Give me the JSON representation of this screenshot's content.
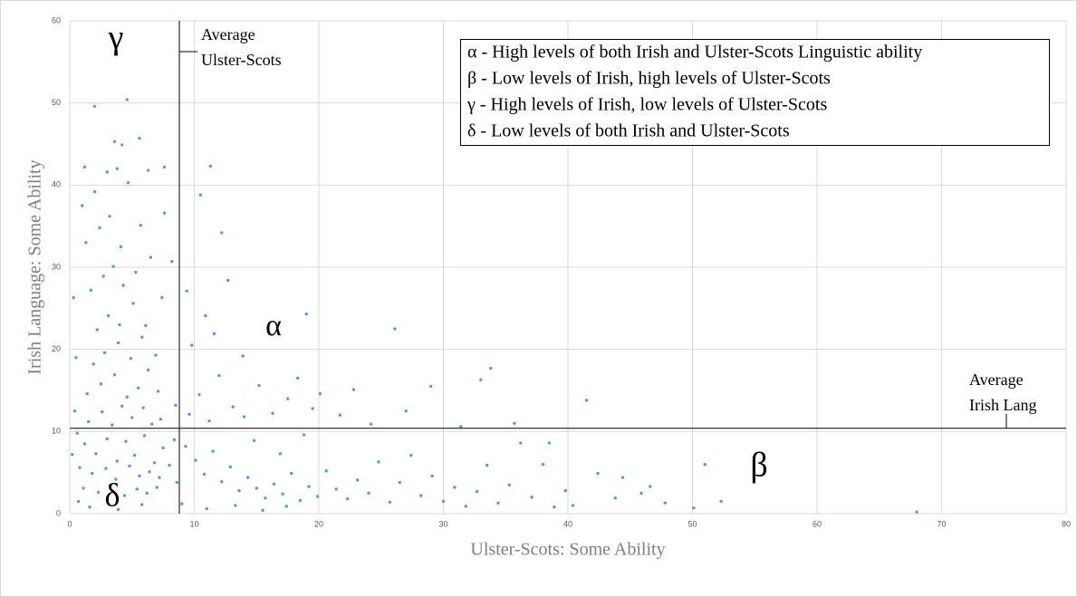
{
  "chart_data": {
    "type": "scatter",
    "x_label": "Ulster-Scots: Some Ability",
    "y_label": "Irish Language: Some Ability",
    "color": "#5b9bd5",
    "grid": true,
    "xlim": [
      0,
      80
    ],
    "xticks": [
      0,
      10,
      20,
      30,
      40,
      50,
      60,
      70,
      80
    ],
    "ylim": [
      0,
      60
    ],
    "yticks": [
      0,
      10,
      20,
      30,
      40,
      50,
      60
    ],
    "vlines": [
      {
        "value": 8.8,
        "label": [
          "Average",
          "Ulster-Scots"
        ]
      }
    ],
    "hlines": [
      {
        "value": 10.4,
        "label": [
          "Average",
          "Irish Lang"
        ]
      }
    ],
    "quadrant_labels": [
      "γ",
      "α",
      "β",
      "δ"
    ],
    "legend_text": [
      "α - High levels of both Irish and Ulster-Scots Linguistic ability",
      "β - Low levels of Irish, high levels of Ulster-Scots",
      "γ - High levels of Irish, low levels of Ulster-Scots",
      "δ - Low levels of both Irish and Ulster-Scots"
    ],
    "x": [
      1.2,
      2.1,
      3.0,
      3.8,
      4.5,
      5.2,
      6.0,
      6.8,
      7.5,
      1.5,
      2.6,
      3.4,
      4.2,
      5.0,
      5.9,
      6.6,
      7.3,
      0.8,
      1.8,
      2.9,
      3.7,
      4.8,
      5.6,
      6.4,
      7.2,
      8.0,
      1.1,
      2.3,
      3.3,
      4.4,
      5.4,
      6.2,
      7.0,
      1.4,
      2.5,
      3.6,
      4.6,
      5.5,
      6.3,
      7.1,
      1.9,
      2.8,
      3.9,
      4.9,
      5.8,
      6.9,
      2.2,
      3.1,
      4.0,
      5.1,
      6.1,
      7.4,
      1.7,
      2.7,
      3.5,
      4.3,
      5.3,
      6.5,
      8.2,
      1.3,
      2.4,
      3.2,
      4.1,
      5.7,
      7.6,
      1.0,
      2.0,
      3.0,
      3.8,
      4.7,
      6.3,
      7.6,
      1.2,
      3.6,
      4.2,
      5.6,
      2.0,
      4.6,
      0.3,
      0.5,
      0.4,
      0.6,
      0.2,
      0.7,
      8.5,
      8.4,
      8.6,
      1.6,
      3.9,
      5.8,
      9.3,
      10.1,
      10.8,
      11.5,
      12.2,
      12.9,
      13.6,
      14.3,
      15.0,
      15.7,
      16.4,
      17.1,
      17.8,
      18.5,
      19.2,
      19.9,
      9.6,
      10.4,
      11.2,
      12.0,
      13.1,
      14.0,
      15.2,
      16.3,
      17.5,
      18.3,
      19.5,
      9.8,
      10.9,
      11.3,
      10.5,
      12.2,
      12.7,
      9.4,
      11.6,
      13.9,
      19.0,
      14.8,
      16.9,
      18.8,
      9.0,
      11.0,
      13.3,
      15.5,
      17.4,
      20.6,
      21.4,
      22.3,
      23.1,
      24.0,
      24.8,
      25.7,
      26.5,
      27.4,
      28.2,
      29.1,
      30.0,
      30.9,
      31.8,
      32.7,
      33.5,
      34.4,
      35.3,
      36.2,
      37.1,
      38.0,
      38.9,
      39.8,
      40.4,
      42.4,
      43.8,
      44.4,
      45.9,
      46.6,
      47.8,
      50.1,
      51.0,
      52.3,
      68.0,
      20.1,
      21.7,
      22.8,
      26.1,
      27.0,
      29.0,
      33.0,
      33.8,
      35.7,
      41.5,
      24.2,
      31.4,
      38.5
    ],
    "values": [
      8.5,
      7.3,
      9.1,
      6.4,
      8.8,
      7.1,
      9.5,
      6.2,
      8.0,
      11.2,
      12.4,
      10.8,
      13.1,
      11.7,
      12.9,
      10.9,
      11.5,
      5.6,
      4.9,
      5.5,
      4.2,
      5.8,
      4.6,
      5.1,
      4.4,
      5.9,
      3.1,
      2.6,
      3.4,
      2.2,
      3.0,
      2.5,
      3.2,
      14.6,
      15.8,
      16.9,
      14.2,
      15.3,
      17.5,
      14.9,
      18.2,
      19.6,
      20.8,
      18.9,
      21.5,
      19.3,
      22.4,
      24.1,
      23.0,
      25.6,
      22.9,
      26.3,
      27.2,
      28.9,
      30.1,
      27.8,
      29.4,
      31.2,
      30.7,
      33.0,
      34.8,
      36.2,
      32.5,
      35.1,
      36.6,
      37.5,
      39.2,
      41.6,
      42.0,
      40.3,
      41.8,
      42.2,
      42.2,
      45.3,
      44.9,
      45.7,
      49.6,
      50.4,
      26.3,
      19.0,
      12.5,
      9.8,
      7.2,
      1.5,
      13.2,
      9.0,
      3.8,
      0.8,
      0.5,
      1.1,
      8.2,
      6.5,
      4.8,
      7.6,
      3.9,
      5.7,
      2.8,
      4.4,
      3.1,
      1.9,
      3.6,
      2.4,
      4.9,
      1.6,
      3.3,
      2.1,
      12.1,
      14.5,
      11.3,
      16.8,
      13.0,
      11.8,
      15.6,
      12.2,
      14.0,
      16.5,
      12.8,
      20.5,
      24.1,
      42.3,
      38.8,
      34.2,
      28.4,
      27.1,
      21.9,
      19.2,
      24.3,
      8.9,
      7.3,
      9.6,
      1.2,
      0.6,
      1.0,
      0.4,
      0.9,
      5.2,
      3.0,
      1.8,
      4.1,
      2.5,
      6.3,
      1.4,
      3.8,
      7.1,
      2.2,
      4.6,
      1.5,
      3.2,
      0.9,
      2.7,
      5.9,
      1.3,
      3.5,
      8.6,
      2.0,
      6.0,
      0.8,
      2.8,
      1.0,
      4.9,
      1.9,
      4.4,
      2.5,
      3.3,
      1.3,
      0.7,
      6.0,
      1.5,
      0.2,
      14.6,
      12.0,
      15.1,
      22.5,
      12.5,
      15.5,
      16.3,
      17.7,
      11.0,
      13.8,
      10.9,
      10.6,
      8.6
    ]
  }
}
